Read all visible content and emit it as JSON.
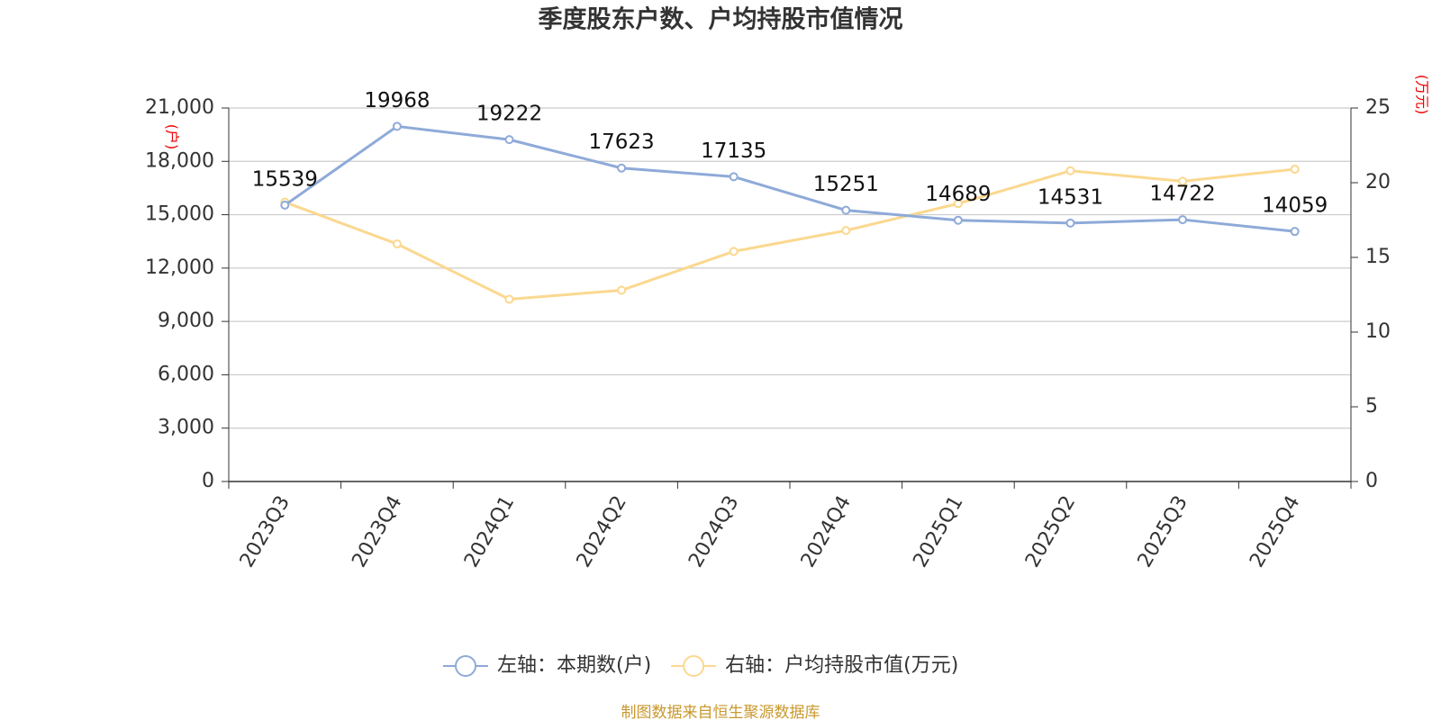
{
  "chart_data": {
    "type": "line",
    "title": "季度股东户数、户均持股市值情况",
    "y_label": "(户)",
    "y2_label": "(万元)",
    "categories": [
      "2023Q3",
      "2023Q4",
      "2024Q1",
      "2024Q2",
      "2024Q3",
      "2024Q4",
      "2025Q1",
      "2025Q2",
      "2025Q3",
      "2025Q4"
    ],
    "series": [
      {
        "name": "左轴：本期数(户)",
        "color": "#8eaad8",
        "values": [
          15539,
          19968,
          19222,
          17623,
          17135,
          15251,
          14689,
          14531,
          14722,
          14059
        ]
      },
      {
        "name": "右轴：户均持股市值(万元)",
        "color": "#fbd88f",
        "axis": "y2",
        "values": [
          18.7,
          15.9,
          12.2,
          12.8,
          15.4,
          16.8,
          18.6,
          20.8,
          20.1,
          20.9
        ]
      }
    ],
    "ylim": [
      0,
      21000
    ],
    "yticks": [
      0,
      {
        "value": 3000,
        "label": "3,000"
      },
      {
        "value": 6000,
        "label": "6,000"
      },
      {
        "value": 9000,
        "label": "9,000"
      },
      {
        "value": 12000,
        "label": "12,000"
      },
      {
        "value": 15000,
        "label": "15,000"
      },
      {
        "value": 18000,
        "label": "18,000"
      },
      {
        "value": 21000,
        "label": "21,000"
      }
    ],
    "y2lim": [
      0,
      25
    ],
    "y2ticks": [
      0,
      5,
      10,
      15,
      20,
      25
    ],
    "grid": true,
    "legend": "bottom",
    "source": "制图数据来自恒生聚源数据库"
  }
}
